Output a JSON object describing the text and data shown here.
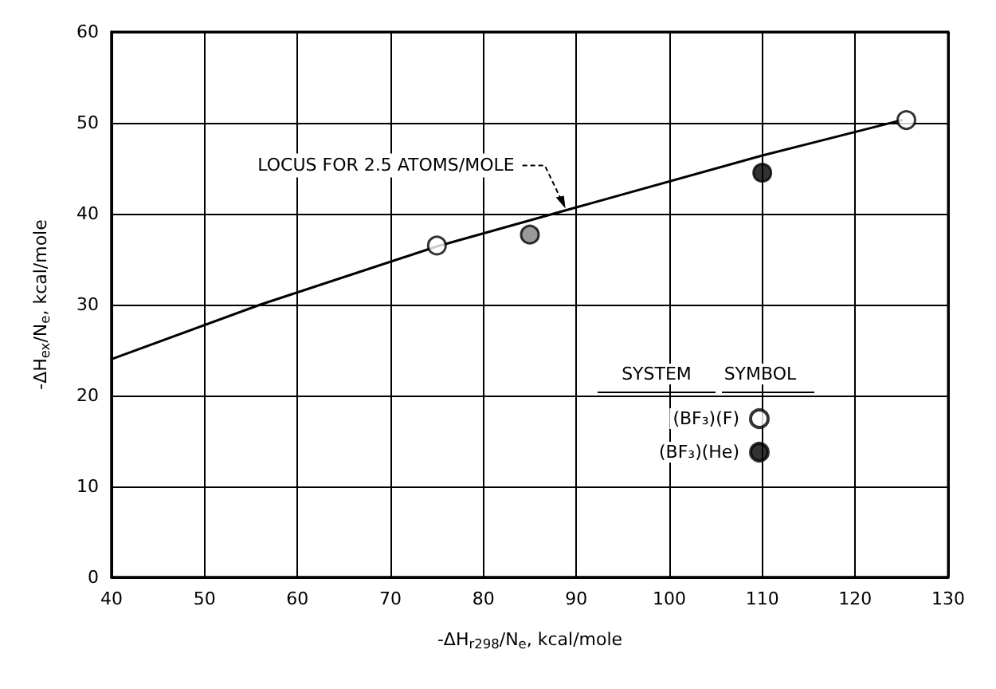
{
  "chart_data": {
    "type": "scatter",
    "xlabel": "-ΔH$_{r298}$/N$_{e}$, kcal/mole",
    "ylabel": "-ΔH$_{ex}$/N$_{e}$, kcal/mole",
    "legend_title": "SYSTEM",
    "annotations": [
      "SYMBOL",
      {
        "text": "LOCUS FOR 2.5 ATOMS/MOLE",
        "x": 89,
        "y": 40.4
      }
    ],
    "xlim": [
      40,
      130
    ],
    "xticks": [
      40,
      50,
      60,
      70,
      80,
      90,
      100,
      110,
      120,
      130
    ],
    "ylim": [
      0,
      60
    ],
    "yticks": [
      0,
      10,
      20,
      30,
      40,
      50,
      60
    ],
    "grid": true,
    "legend": "bottom right",
    "series": [
      {
        "type": "line",
        "color": "#000000",
        "x": [
          40,
          56,
          75,
          90,
          110,
          125
        ],
        "values": [
          24,
          30,
          36.4,
          40.7,
          46.4,
          50.3
        ],
        "marker": "none",
        "line_style": "solid"
      },
      {
        "name": "(BF₃)(F)",
        "color": "#ffffff",
        "x": [
          75,
          125.5
        ],
        "values": [
          36.5,
          50.3
        ],
        "marker": "circle"
      },
      {
        "name": "(BF₃)(He)",
        "color": "#000000",
        "x": [
          110
        ],
        "values": [
          44.5
        ],
        "marker": "circle"
      },
      {
        "color": "#808080",
        "x": [
          85
        ],
        "values": [
          37.7
        ],
        "marker": "circle"
      }
    ]
  }
}
